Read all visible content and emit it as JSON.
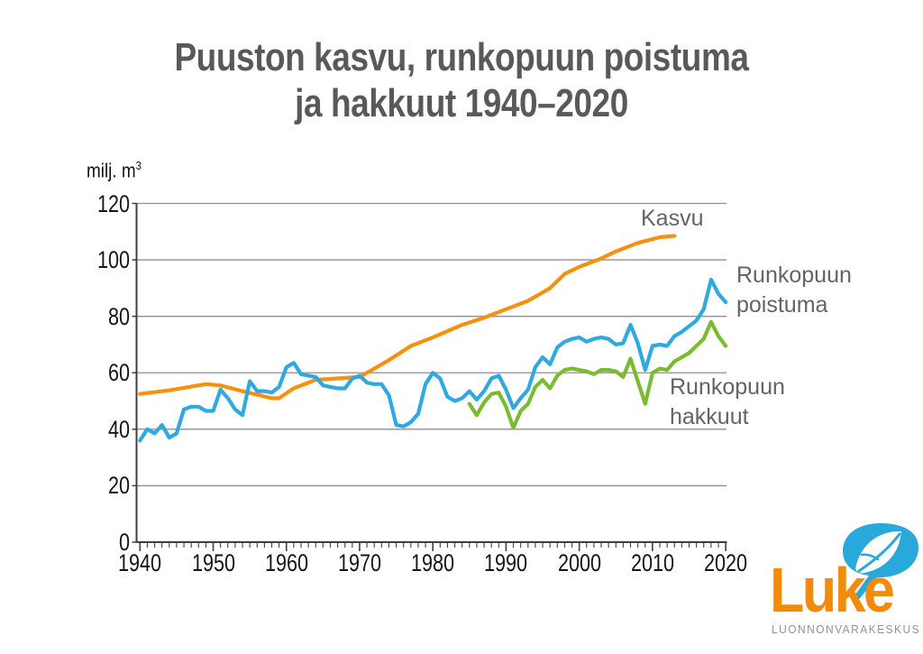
{
  "title": {
    "line1": "Puuston kasvu, runkopuun poistuma",
    "line2": "ja hakkuut 1940–2020"
  },
  "axes": {
    "y": {
      "unit_prefix": "milj. m",
      "unit_exponent": "3"
    }
  },
  "series_labels": {
    "kasvu": "Kasvu",
    "poistuma": "Runkopuun poistuma",
    "hakkuut": "Runkopuun hakkuut"
  },
  "logo": {
    "wordmark": "Luke",
    "subtitle": "LUONNONVARAKESKUS",
    "orange": "#f18b0c",
    "blue": "#29a8dc"
  },
  "colors": {
    "title_gray": "#58595b",
    "label_gray": "#636466",
    "gridline": "#8e8e8e",
    "axis": "#3f3f3f",
    "tick_text": "#161616"
  },
  "chart_data": {
    "type": "line",
    "title": "Puuston kasvu, runkopuun poistuma ja hakkuut 1940–2020",
    "ylabel": "milj. m³",
    "xlabel": "",
    "xlim": [
      1940,
      2020
    ],
    "ylim": [
      0,
      120
    ],
    "y_ticks": [
      0,
      20,
      40,
      60,
      80,
      100,
      120
    ],
    "x_ticks": [
      1940,
      1950,
      1960,
      1970,
      1980,
      1990,
      2000,
      2010,
      2020
    ],
    "x_minor_step": 1,
    "grid": "horizontal",
    "legend_position": "inline-labels",
    "series": [
      {
        "key": "kasvu",
        "name": "Kasvu",
        "color": "#f6910e",
        "points": [
          [
            1940,
            52.5
          ],
          [
            1944,
            53.8
          ],
          [
            1949,
            56
          ],
          [
            1951,
            55.5
          ],
          [
            1954,
            53.5
          ],
          [
            1958,
            51
          ],
          [
            1959,
            51
          ],
          [
            1961,
            54.5
          ],
          [
            1964,
            57.5
          ],
          [
            1967,
            58
          ],
          [
            1970,
            58.5
          ],
          [
            1974,
            64.5
          ],
          [
            1977,
            69.5
          ],
          [
            1980,
            72.5
          ],
          [
            1984,
            77
          ],
          [
            1987,
            79.5
          ],
          [
            1990,
            82.5
          ],
          [
            1993,
            85.5
          ],
          [
            1996,
            90
          ],
          [
            1998,
            95
          ],
          [
            2000,
            97.5
          ],
          [
            2003,
            100.5
          ],
          [
            2005,
            103
          ],
          [
            2008,
            106
          ],
          [
            2011,
            108
          ],
          [
            2013,
            108.5
          ]
        ]
      },
      {
        "key": "poistuma",
        "name": "Runkopuun poistuma",
        "color": "#2fa9e0",
        "points": [
          [
            1940,
            36
          ],
          [
            1941,
            40
          ],
          [
            1942,
            38.5
          ],
          [
            1943,
            41.5
          ],
          [
            1944,
            37
          ],
          [
            1945,
            38.5
          ],
          [
            1946,
            47
          ],
          [
            1947,
            48
          ],
          [
            1948,
            48
          ],
          [
            1949,
            46.5
          ],
          [
            1950,
            46.5
          ],
          [
            1951,
            54
          ],
          [
            1952,
            51
          ],
          [
            1953,
            47
          ],
          [
            1954,
            45
          ],
          [
            1955,
            57
          ],
          [
            1956,
            53.5
          ],
          [
            1957,
            53.5
          ],
          [
            1958,
            53
          ],
          [
            1959,
            55
          ],
          [
            1960,
            62
          ],
          [
            1961,
            63.5
          ],
          [
            1962,
            59.5
          ],
          [
            1963,
            59
          ],
          [
            1964,
            58.5
          ],
          [
            1965,
            55.5
          ],
          [
            1966,
            55
          ],
          [
            1967,
            54.5
          ],
          [
            1968,
            54.5
          ],
          [
            1969,
            58
          ],
          [
            1970,
            59
          ],
          [
            1971,
            56.5
          ],
          [
            1972,
            56
          ],
          [
            1973,
            56
          ],
          [
            1974,
            52
          ],
          [
            1975,
            41.5
          ],
          [
            1976,
            41
          ],
          [
            1977,
            42.5
          ],
          [
            1978,
            45.5
          ],
          [
            1979,
            56
          ],
          [
            1980,
            60
          ],
          [
            1981,
            58
          ],
          [
            1982,
            51.5
          ],
          [
            1983,
            50
          ],
          [
            1984,
            51
          ],
          [
            1985,
            53.5
          ],
          [
            1986,
            50.5
          ],
          [
            1987,
            53.5
          ],
          [
            1988,
            58
          ],
          [
            1989,
            59
          ],
          [
            1990,
            54
          ],
          [
            1991,
            47.5
          ],
          [
            1992,
            51
          ],
          [
            1993,
            54
          ],
          [
            1994,
            62
          ],
          [
            1995,
            65.5
          ],
          [
            1996,
            63
          ],
          [
            1997,
            69
          ],
          [
            1998,
            71
          ],
          [
            1999,
            72
          ],
          [
            2000,
            72.5
          ],
          [
            2001,
            71
          ],
          [
            2002,
            72
          ],
          [
            2003,
            72.5
          ],
          [
            2004,
            72
          ],
          [
            2005,
            70
          ],
          [
            2006,
            70.5
          ],
          [
            2007,
            77
          ],
          [
            2008,
            70.5
          ],
          [
            2009,
            61
          ],
          [
            2010,
            69.5
          ],
          [
            2011,
            70
          ],
          [
            2012,
            69.5
          ],
          [
            2013,
            73
          ],
          [
            2014,
            74.5
          ],
          [
            2015,
            76.5
          ],
          [
            2016,
            78.5
          ],
          [
            2017,
            82.5
          ],
          [
            2018,
            93
          ],
          [
            2019,
            88
          ],
          [
            2020,
            85
          ]
        ]
      },
      {
        "key": "hakkuut",
        "name": "Runkopuun hakkuut",
        "color": "#7bbb2f",
        "points": [
          [
            1985,
            49
          ],
          [
            1986,
            45
          ],
          [
            1987,
            49.5
          ],
          [
            1988,
            52.5
          ],
          [
            1989,
            53
          ],
          [
            1990,
            48
          ],
          [
            1991,
            40.5
          ],
          [
            1992,
            46.5
          ],
          [
            1993,
            49
          ],
          [
            1994,
            55
          ],
          [
            1995,
            57.5
          ],
          [
            1996,
            54.5
          ],
          [
            1997,
            59
          ],
          [
            1998,
            61
          ],
          [
            1999,
            61.5
          ],
          [
            2000,
            61
          ],
          [
            2001,
            60.5
          ],
          [
            2002,
            59.5
          ],
          [
            2003,
            61
          ],
          [
            2004,
            61
          ],
          [
            2005,
            60.5
          ],
          [
            2006,
            58.5
          ],
          [
            2007,
            65
          ],
          [
            2008,
            57
          ],
          [
            2009,
            49
          ],
          [
            2010,
            60
          ],
          [
            2011,
            61.5
          ],
          [
            2012,
            61
          ],
          [
            2013,
            64
          ],
          [
            2014,
            65.5
          ],
          [
            2015,
            67
          ],
          [
            2016,
            69.5
          ],
          [
            2017,
            72
          ],
          [
            2018,
            78
          ],
          [
            2019,
            73
          ],
          [
            2020,
            69.5
          ]
        ]
      }
    ]
  }
}
